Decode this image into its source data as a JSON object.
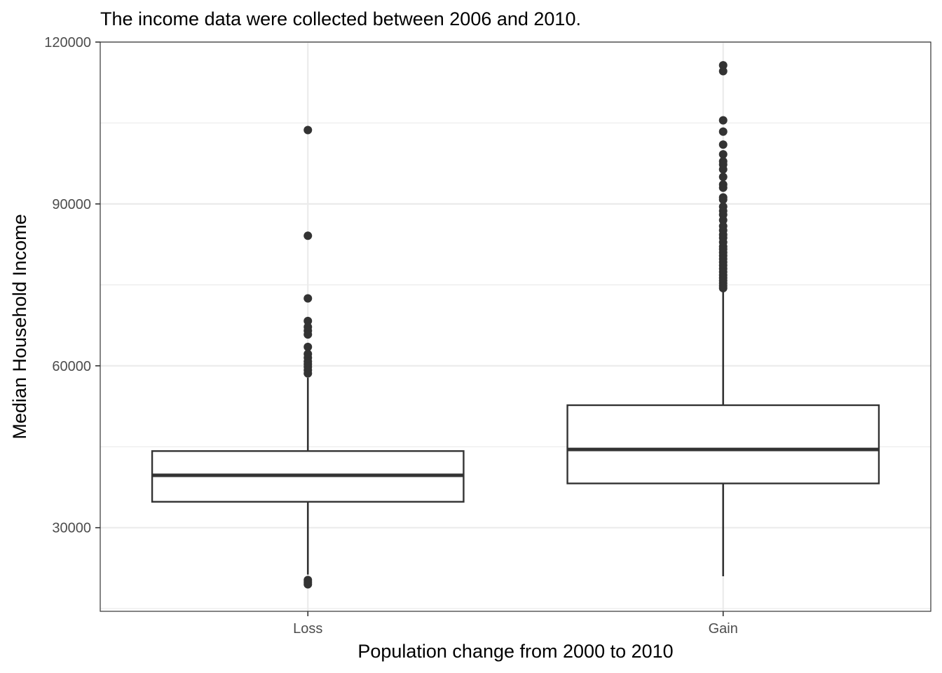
{
  "chart_data": {
    "type": "box",
    "title": "The income data were collected between 2006 and 2010.",
    "xlabel": "Population change from 2000 to 2010",
    "ylabel": "Median Household Income",
    "ylim": [
      14500,
      120000
    ],
    "yticks": [
      30000,
      60000,
      90000,
      120000
    ],
    "grid": true,
    "categories": [
      "Loss",
      "Gain"
    ],
    "boxes": [
      {
        "category": "Loss",
        "lower_whisker": 21300,
        "q1": 34800,
        "median": 39700,
        "q3": 44200,
        "upper_whisker": 57800,
        "outliers": [
          103700,
          84100,
          72500,
          68300,
          67200,
          66500,
          65800,
          63500,
          62200,
          61500,
          60800,
          60300,
          59800,
          59200,
          58600,
          20300,
          19900,
          19500
        ]
      },
      {
        "category": "Gain",
        "lower_whisker": 21000,
        "q1": 38200,
        "median": 44500,
        "q3": 52700,
        "upper_whisker": 74200,
        "outliers": [
          115700,
          114600,
          105500,
          103400,
          101000,
          99200,
          97900,
          97300,
          96400,
          95000,
          93600,
          93000,
          91200,
          90800,
          89500,
          88700,
          88000,
          87000,
          85900,
          85100,
          84300,
          83700,
          82900,
          82100,
          81600,
          81000,
          80400,
          79800,
          79200,
          78600,
          78000,
          77400,
          76800,
          76300,
          75800,
          75300,
          74800,
          74400
        ]
      }
    ]
  }
}
